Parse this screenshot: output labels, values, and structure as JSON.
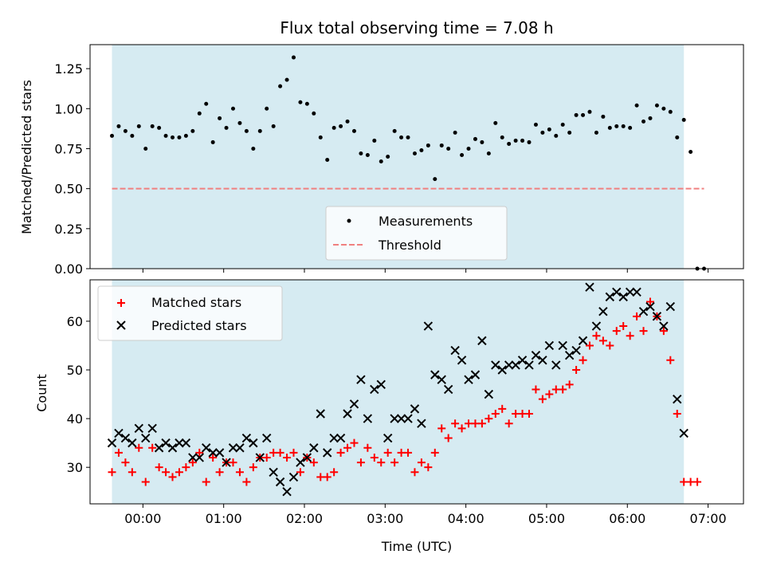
{
  "chart_data": [
    {
      "type": "scatter",
      "title": "Flux total observing time = 7.08 h",
      "xlabel": "",
      "ylabel": "Matched/Predicted stars",
      "ylim": [
        0,
        1.4
      ],
      "yticks": [
        "0.00",
        "0.25",
        "0.50",
        "0.75",
        "1.00",
        "1.25"
      ],
      "legend_position": "lower-center",
      "observing_window": {
        "start": "23:37",
        "end": "06:42",
        "color": "#add8e6"
      },
      "threshold": {
        "name": "Threshold",
        "value": 0.5,
        "color": "#f08080"
      },
      "series": [
        {
          "name": "Measurements",
          "marker": "dot",
          "color": "#000000",
          "points": [
            [
              "23:37",
              0.83
            ],
            [
              "23:42",
              0.89
            ],
            [
              "23:47",
              0.86
            ],
            [
              "23:52",
              0.83
            ],
            [
              "23:57",
              0.89
            ],
            [
              "00:02",
              0.75
            ],
            [
              "00:07",
              0.89
            ],
            [
              "00:12",
              0.88
            ],
            [
              "00:17",
              0.83
            ],
            [
              "00:22",
              0.82
            ],
            [
              "00:27",
              0.82
            ],
            [
              "00:32",
              0.83
            ],
            [
              "00:37",
              0.86
            ],
            [
              "00:42",
              0.97
            ],
            [
              "00:47",
              1.03
            ],
            [
              "00:52",
              0.79
            ],
            [
              "00:57",
              0.94
            ],
            [
              "01:02",
              0.88
            ],
            [
              "01:07",
              1.0
            ],
            [
              "01:12",
              0.91
            ],
            [
              "01:17",
              0.86
            ],
            [
              "01:22",
              0.75
            ],
            [
              "01:27",
              0.86
            ],
            [
              "01:32",
              1.0
            ],
            [
              "01:37",
              0.89
            ],
            [
              "01:42",
              1.14
            ],
            [
              "01:47",
              1.18
            ],
            [
              "01:52",
              1.32
            ],
            [
              "01:57",
              1.04
            ],
            [
              "02:02",
              1.03
            ],
            [
              "02:07",
              0.97
            ],
            [
              "02:12",
              0.82
            ],
            [
              "02:17",
              0.68
            ],
            [
              "02:22",
              0.88
            ],
            [
              "02:27",
              0.89
            ],
            [
              "02:32",
              0.92
            ],
            [
              "02:37",
              0.86
            ],
            [
              "02:42",
              0.72
            ],
            [
              "02:47",
              0.71
            ],
            [
              "02:52",
              0.8
            ],
            [
              "02:57",
              0.67
            ],
            [
              "03:02",
              0.7
            ],
            [
              "03:07",
              0.86
            ],
            [
              "03:12",
              0.82
            ],
            [
              "03:17",
              0.82
            ],
            [
              "03:22",
              0.72
            ],
            [
              "03:27",
              0.74
            ],
            [
              "03:32",
              0.77
            ],
            [
              "03:37",
              0.56
            ],
            [
              "03:42",
              0.77
            ],
            [
              "03:47",
              0.75
            ],
            [
              "03:52",
              0.85
            ],
            [
              "03:57",
              0.71
            ],
            [
              "04:02",
              0.75
            ],
            [
              "04:07",
              0.81
            ],
            [
              "04:12",
              0.79
            ],
            [
              "04:17",
              0.72
            ],
            [
              "04:22",
              0.91
            ],
            [
              "04:27",
              0.82
            ],
            [
              "04:32",
              0.78
            ],
            [
              "04:37",
              0.8
            ],
            [
              "04:42",
              0.8
            ],
            [
              "04:47",
              0.79
            ],
            [
              "04:52",
              0.9
            ],
            [
              "04:57",
              0.85
            ],
            [
              "05:02",
              0.87
            ],
            [
              "05:07",
              0.83
            ],
            [
              "05:12",
              0.9
            ],
            [
              "05:17",
              0.85
            ],
            [
              "05:22",
              0.96
            ],
            [
              "05:27",
              0.96
            ],
            [
              "05:32",
              0.98
            ],
            [
              "05:37",
              0.85
            ],
            [
              "05:42",
              0.95
            ],
            [
              "05:47",
              0.88
            ],
            [
              "05:52",
              0.89
            ],
            [
              "05:57",
              0.89
            ],
            [
              "06:02",
              0.88
            ],
            [
              "06:07",
              1.02
            ],
            [
              "06:12",
              0.92
            ],
            [
              "06:17",
              0.94
            ],
            [
              "06:22",
              1.02
            ],
            [
              "06:27",
              1.0
            ],
            [
              "06:32",
              0.98
            ],
            [
              "06:37",
              0.82
            ],
            [
              "06:42",
              0.93
            ],
            [
              "06:47",
              0.73
            ],
            [
              "06:52",
              0.0
            ],
            [
              "06:57",
              0.0
            ]
          ]
        }
      ]
    },
    {
      "type": "scatter",
      "title": "",
      "xlabel": "Time (UTC)",
      "ylabel": "Count",
      "ylim": [
        22.5,
        68.5
      ],
      "yticks": [
        "30",
        "40",
        "50",
        "60"
      ],
      "xticks": [
        "00:00",
        "01:00",
        "02:00",
        "03:00",
        "04:00",
        "05:00",
        "06:00",
        "07:00"
      ],
      "legend_position": "upper-left",
      "observing_window": {
        "start": "23:37",
        "end": "06:42",
        "color": "#add8e6"
      },
      "series": [
        {
          "name": "Matched stars",
          "marker": "plus",
          "color": "#ff0000",
          "points": [
            [
              "23:37",
              29
            ],
            [
              "23:42",
              33
            ],
            [
              "23:47",
              31
            ],
            [
              "23:52",
              29
            ],
            [
              "23:57",
              34
            ],
            [
              "00:02",
              27
            ],
            [
              "00:07",
              34
            ],
            [
              "00:12",
              30
            ],
            [
              "00:17",
              29
            ],
            [
              "00:22",
              28
            ],
            [
              "00:27",
              29
            ],
            [
              "00:32",
              30
            ],
            [
              "00:37",
              31
            ],
            [
              "00:42",
              33
            ],
            [
              "00:47",
              27
            ],
            [
              "00:52",
              32
            ],
            [
              "00:57",
              29
            ],
            [
              "01:02",
              31
            ],
            [
              "01:07",
              31
            ],
            [
              "01:12",
              29
            ],
            [
              "01:17",
              27
            ],
            [
              "01:22",
              30
            ],
            [
              "01:27",
              32
            ],
            [
              "01:32",
              32
            ],
            [
              "01:37",
              33
            ],
            [
              "01:42",
              33
            ],
            [
              "01:47",
              32
            ],
            [
              "01:52",
              33
            ],
            [
              "01:57",
              29
            ],
            [
              "02:02",
              32
            ],
            [
              "02:07",
              31
            ],
            [
              "02:12",
              28
            ],
            [
              "02:17",
              28
            ],
            [
              "02:22",
              29
            ],
            [
              "02:27",
              33
            ],
            [
              "02:32",
              34
            ],
            [
              "02:37",
              35
            ],
            [
              "02:42",
              31
            ],
            [
              "02:47",
              34
            ],
            [
              "02:52",
              32
            ],
            [
              "02:57",
              31
            ],
            [
              "03:02",
              33
            ],
            [
              "03:07",
              31
            ],
            [
              "03:12",
              33
            ],
            [
              "03:17",
              33
            ],
            [
              "03:22",
              29
            ],
            [
              "03:27",
              31
            ],
            [
              "03:32",
              30
            ],
            [
              "03:37",
              33
            ],
            [
              "03:42",
              38
            ],
            [
              "03:47",
              36
            ],
            [
              "03:52",
              39
            ],
            [
              "03:57",
              38
            ],
            [
              "04:02",
              39
            ],
            [
              "04:07",
              39
            ],
            [
              "04:12",
              39
            ],
            [
              "04:17",
              40
            ],
            [
              "04:22",
              41
            ],
            [
              "04:27",
              42
            ],
            [
              "04:32",
              39
            ],
            [
              "04:37",
              41
            ],
            [
              "04:42",
              41
            ],
            [
              "04:47",
              41
            ],
            [
              "04:52",
              46
            ],
            [
              "04:57",
              44
            ],
            [
              "05:02",
              45
            ],
            [
              "05:07",
              46
            ],
            [
              "05:12",
              46
            ],
            [
              "05:17",
              47
            ],
            [
              "05:22",
              50
            ],
            [
              "05:27",
              52
            ],
            [
              "05:32",
              55
            ],
            [
              "05:37",
              57
            ],
            [
              "05:42",
              56
            ],
            [
              "05:47",
              55
            ],
            [
              "05:52",
              58
            ],
            [
              "05:57",
              59
            ],
            [
              "06:02",
              57
            ],
            [
              "06:07",
              61
            ],
            [
              "06:12",
              58
            ],
            [
              "06:17",
              64
            ],
            [
              "06:22",
              61
            ],
            [
              "06:27",
              58
            ],
            [
              "06:32",
              52
            ],
            [
              "06:37",
              41
            ],
            [
              "06:42",
              27
            ],
            [
              "06:47",
              27
            ],
            [
              "06:52",
              27
            ]
          ]
        },
        {
          "name": "Predicted stars",
          "marker": "x",
          "color": "#000000",
          "points": [
            [
              "23:37",
              35
            ],
            [
              "23:42",
              37
            ],
            [
              "23:47",
              36
            ],
            [
              "23:52",
              35
            ],
            [
              "23:57",
              38
            ],
            [
              "00:02",
              36
            ],
            [
              "00:07",
              38
            ],
            [
              "00:12",
              34
            ],
            [
              "00:17",
              35
            ],
            [
              "00:22",
              34
            ],
            [
              "00:27",
              35
            ],
            [
              "00:32",
              35
            ],
            [
              "00:37",
              32
            ],
            [
              "00:42",
              32
            ],
            [
              "00:47",
              34
            ],
            [
              "00:52",
              33
            ],
            [
              "00:57",
              33
            ],
            [
              "01:02",
              31
            ],
            [
              "01:07",
              34
            ],
            [
              "01:12",
              34
            ],
            [
              "01:17",
              36
            ],
            [
              "01:22",
              35
            ],
            [
              "01:27",
              32
            ],
            [
              "01:32",
              36
            ],
            [
              "01:37",
              29
            ],
            [
              "01:42",
              27
            ],
            [
              "01:47",
              25
            ],
            [
              "01:52",
              28
            ],
            [
              "01:57",
              31
            ],
            [
              "02:02",
              32
            ],
            [
              "02:07",
              34
            ],
            [
              "02:12",
              41
            ],
            [
              "02:17",
              33
            ],
            [
              "02:22",
              36
            ],
            [
              "02:27",
              36
            ],
            [
              "02:32",
              41
            ],
            [
              "02:37",
              43
            ],
            [
              "02:42",
              48
            ],
            [
              "02:47",
              40
            ],
            [
              "02:52",
              46
            ],
            [
              "02:57",
              47
            ],
            [
              "03:02",
              36
            ],
            [
              "03:07",
              40
            ],
            [
              "03:12",
              40
            ],
            [
              "03:17",
              40
            ],
            [
              "03:22",
              42
            ],
            [
              "03:27",
              39
            ],
            [
              "03:32",
              59
            ],
            [
              "03:37",
              49
            ],
            [
              "03:42",
              48
            ],
            [
              "03:47",
              46
            ],
            [
              "03:52",
              54
            ],
            [
              "03:57",
              52
            ],
            [
              "04:02",
              48
            ],
            [
              "04:07",
              49
            ],
            [
              "04:12",
              56
            ],
            [
              "04:17",
              45
            ],
            [
              "04:22",
              51
            ],
            [
              "04:27",
              50
            ],
            [
              "04:32",
              51
            ],
            [
              "04:37",
              51
            ],
            [
              "04:42",
              52
            ],
            [
              "04:47",
              51
            ],
            [
              "04:52",
              53
            ],
            [
              "04:57",
              52
            ],
            [
              "05:02",
              55
            ],
            [
              "05:07",
              51
            ],
            [
              "05:12",
              55
            ],
            [
              "05:17",
              53
            ],
            [
              "05:22",
              54
            ],
            [
              "05:27",
              56
            ],
            [
              "05:32",
              67
            ],
            [
              "05:37",
              59
            ],
            [
              "05:42",
              62
            ],
            [
              "05:47",
              65
            ],
            [
              "05:52",
              66
            ],
            [
              "05:57",
              65
            ],
            [
              "06:02",
              66
            ],
            [
              "06:07",
              66
            ],
            [
              "06:12",
              62
            ],
            [
              "06:17",
              63
            ],
            [
              "06:22",
              61
            ],
            [
              "06:27",
              59
            ],
            [
              "06:32",
              63
            ],
            [
              "06:37",
              44
            ],
            [
              "06:42",
              37
            ]
          ]
        }
      ]
    }
  ]
}
